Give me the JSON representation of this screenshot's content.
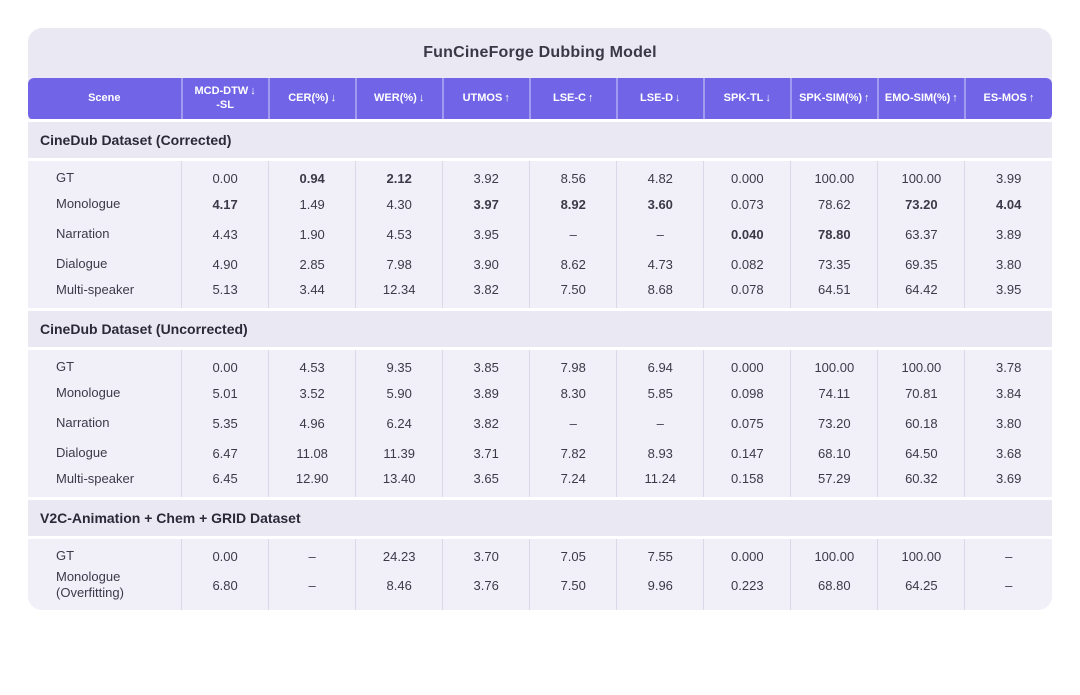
{
  "title": "FunCineForge Dubbing Model",
  "colors": {
    "header_bg": "#7164E6",
    "card_bg": "#EAE9F3",
    "data_bg": "#F1F0F9",
    "divider": "#DBD9E8",
    "highlight": "#5A4AD8",
    "header_text": "#FFFFFF",
    "body_text": "#3C3A48"
  },
  "chart_data": {
    "type": "table",
    "title": "FunCineForge Dubbing Model",
    "columns": [
      {
        "label": "Scene",
        "arrow": ""
      },
      {
        "label": "MCD-DTW",
        "label2": "-SL",
        "arrow": "↓"
      },
      {
        "label": "CER(%)",
        "arrow": "↓"
      },
      {
        "label": "WER(%)",
        "arrow": "↓"
      },
      {
        "label": "UTMOS",
        "arrow": "↑"
      },
      {
        "label": "LSE-C",
        "arrow": "↑"
      },
      {
        "label": "LSE-D",
        "arrow": "↓"
      },
      {
        "label": "SPK-TL",
        "arrow": "↓"
      },
      {
        "label": "SPK-SIM(%)",
        "arrow": "↑"
      },
      {
        "label": "EMO-SIM(%)",
        "arrow": "↑"
      },
      {
        "label": "ES-MOS",
        "arrow": "↑"
      }
    ],
    "sections": [
      {
        "header": "CineDub Dataset (Corrected)",
        "rows": [
          {
            "scene": "GT",
            "values": [
              "0.00",
              "0.94",
              "2.12",
              "3.92",
              "8.56",
              "4.82",
              "0.000",
              "100.00",
              "100.00",
              "3.99"
            ],
            "highlight": [
              1,
              2
            ]
          },
          {
            "scene": "Monologue",
            "values": [
              "4.17",
              "1.49",
              "4.30",
              "3.97",
              "8.92",
              "3.60",
              "0.073",
              "78.62",
              "73.20",
              "4.04"
            ],
            "highlight": [
              0,
              3,
              4,
              5,
              8,
              9
            ]
          },
          {
            "scene": "Narration",
            "values": [
              "4.43",
              "1.90",
              "4.53",
              "3.95",
              "–",
              "–",
              "0.040",
              "78.80",
              "63.37",
              "3.89"
            ],
            "highlight": [
              6,
              7
            ]
          },
          {
            "scene": "Dialogue",
            "values": [
              "4.90",
              "2.85",
              "7.98",
              "3.90",
              "8.62",
              "4.73",
              "0.082",
              "73.35",
              "69.35",
              "3.80"
            ],
            "highlight": []
          },
          {
            "scene": "Multi-speaker",
            "values": [
              "5.13",
              "3.44",
              "12.34",
              "3.82",
              "7.50",
              "8.68",
              "0.078",
              "64.51",
              "64.42",
              "3.95"
            ],
            "highlight": []
          }
        ]
      },
      {
        "header": "CineDub Dataset (Uncorrected)",
        "rows": [
          {
            "scene": "GT",
            "values": [
              "0.00",
              "4.53",
              "9.35",
              "3.85",
              "7.98",
              "6.94",
              "0.000",
              "100.00",
              "100.00",
              "3.78"
            ],
            "highlight": []
          },
          {
            "scene": "Monologue",
            "values": [
              "5.01",
              "3.52",
              "5.90",
              "3.89",
              "8.30",
              "5.85",
              "0.098",
              "74.11",
              "70.81",
              "3.84"
            ],
            "highlight": []
          },
          {
            "scene": "Narration",
            "values": [
              "5.35",
              "4.96",
              "6.24",
              "3.82",
              "–",
              "–",
              "0.075",
              "73.20",
              "60.18",
              "3.80"
            ],
            "highlight": []
          },
          {
            "scene": "Dialogue",
            "values": [
              "6.47",
              "11.08",
              "11.39",
              "3.71",
              "7.82",
              "8.93",
              "0.147",
              "68.10",
              "64.50",
              "3.68"
            ],
            "highlight": []
          },
          {
            "scene": "Multi-speaker",
            "values": [
              "6.45",
              "12.90",
              "13.40",
              "3.65",
              "7.24",
              "11.24",
              "0.158",
              "57.29",
              "60.32",
              "3.69"
            ],
            "highlight": []
          }
        ]
      },
      {
        "header": "V2C-Animation + Chem + GRID Dataset",
        "rows": [
          {
            "scene": "GT",
            "values": [
              "0.00",
              "–",
              "24.23",
              "3.70",
              "7.05",
              "7.55",
              "0.000",
              "100.00",
              "100.00",
              "–"
            ],
            "highlight": []
          },
          {
            "scene": "Monologue",
            "scene2": "(Overfitting)",
            "values": [
              "6.80",
              "–",
              "8.46",
              "3.76",
              "7.50",
              "9.96",
              "0.223",
              "68.80",
              "64.25",
              "–"
            ],
            "highlight": []
          }
        ]
      }
    ]
  }
}
